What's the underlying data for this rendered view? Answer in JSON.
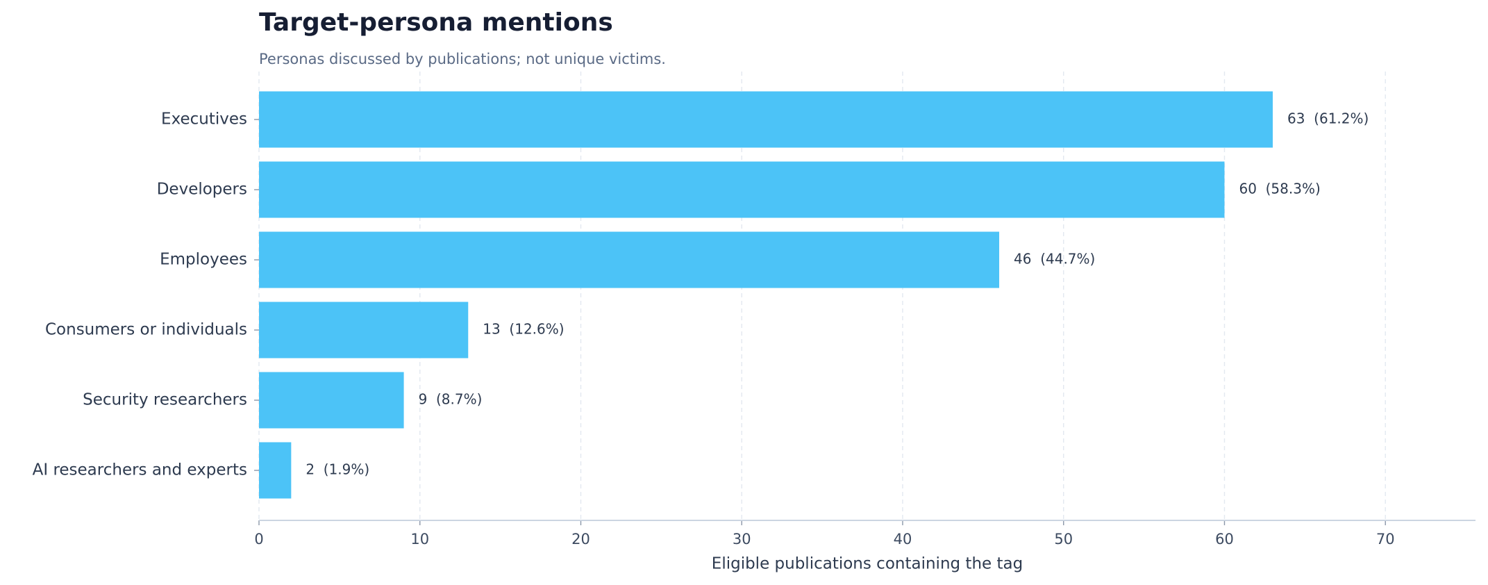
{
  "chart_data": {
    "type": "hbar",
    "title": "Target-persona mentions",
    "subtitle": "Personas discussed by publications; not unique victims.",
    "xlabel": "Eligible publications containing the tag",
    "categories": [
      "Executives",
      "Developers",
      "Employees",
      "Consumers or individuals",
      "Security researchers",
      "AI researchers and experts"
    ],
    "values": [
      63,
      60,
      46,
      13,
      9,
      2
    ],
    "value_labels": [
      "63  (61.2%)",
      "60  (58.3%)",
      "46  (44.7%)",
      "13  (12.6%)",
      "9  (8.7%)",
      "2  (1.9%)"
    ],
    "color": "#4cc3f7",
    "xlim": [
      0,
      75.6
    ],
    "xticks": [
      0,
      10,
      20,
      30,
      40,
      50,
      60,
      70
    ],
    "grid": true
  }
}
